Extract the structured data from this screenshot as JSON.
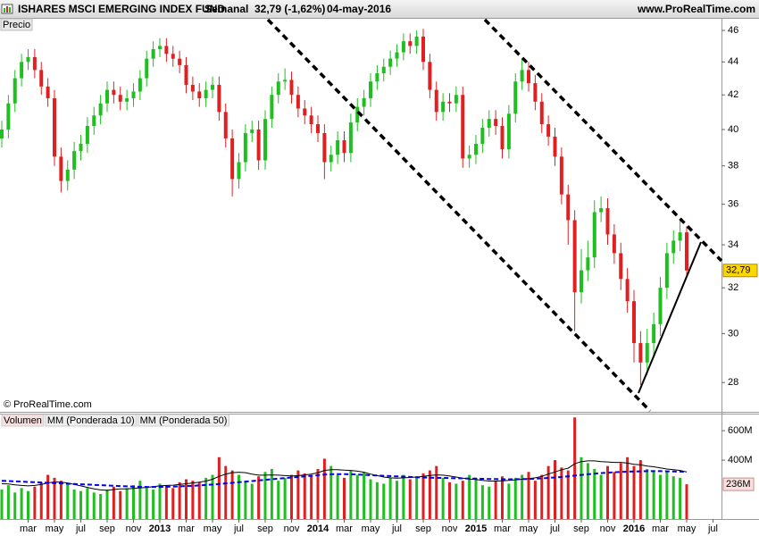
{
  "chart_data": [
    {
      "type": "candlestick",
      "title": "ISHARES MSCI EMERGING INDEX FUND",
      "period": "Semanal",
      "last_change": "32,79 (-1,62%)",
      "date": "04-may-2016",
      "source": "www.ProRealTime.com",
      "panel_label": "Precio",
      "copyright": "© ProRealTime.com",
      "categories": [
        null,
        null,
        null,
        null,
        "mar",
        null,
        null,
        null,
        "may",
        null,
        null,
        null,
        "jul",
        null,
        null,
        null,
        "sep",
        null,
        null,
        null,
        "nov",
        null,
        null,
        null,
        "2013",
        null,
        null,
        null,
        "mar",
        null,
        null,
        null,
        "may",
        null,
        null,
        null,
        "jul",
        null,
        null,
        null,
        "sep",
        null,
        null,
        null,
        "nov",
        null,
        null,
        null,
        "2014",
        null,
        null,
        null,
        "mar",
        null,
        null,
        null,
        "may",
        null,
        null,
        null,
        "jul",
        null,
        null,
        null,
        "sep",
        null,
        null,
        null,
        "nov",
        null,
        null,
        null,
        "2015",
        null,
        null,
        null,
        "mar",
        null,
        null,
        null,
        "may",
        null,
        null,
        null,
        "jul",
        null,
        null,
        null,
        "sep",
        null,
        null,
        null,
        "nov",
        null,
        null,
        null,
        "2016",
        null,
        null,
        null,
        "mar",
        null,
        null,
        null,
        "may",
        null,
        null,
        null,
        "jul",
        null
      ],
      "open": [
        39.5,
        40.0,
        41.5,
        43.0,
        44.0,
        44.3,
        43.5,
        42.5,
        41.8,
        38.5,
        37.2,
        37.8,
        38.8,
        39.2,
        40.2,
        40.8,
        41.5,
        42.3,
        42.0,
        41.6,
        41.8,
        42.2,
        43.0,
        44.2,
        44.8,
        45.0,
        44.5,
        44.2,
        43.8,
        42.6,
        42.2,
        41.8,
        42.3,
        42.6,
        41.0,
        39.5,
        37.3,
        38.2,
        39.8,
        40.0,
        38.3,
        40.6,
        42.0,
        42.8,
        42.9,
        42.0,
        41.2,
        40.8,
        40.3,
        39.8,
        38.2,
        38.6,
        39.4,
        38.7,
        40.4,
        41.3,
        41.8,
        42.8,
        43.3,
        43.7,
        44.2,
        44.6,
        45.3,
        45.0,
        45.6,
        44.0,
        42.3,
        41.0,
        41.6,
        41.5,
        42.0,
        38.4,
        38.6,
        39.2,
        40.1,
        40.6,
        40.2,
        38.9,
        40.9,
        42.8,
        43.5,
        42.7,
        41.6,
        40.3,
        39.6,
        38.5,
        36.5,
        35.2,
        31.8,
        32.8,
        33.4,
        35.6,
        35.8,
        34.5,
        33.6,
        32.4,
        31.4,
        29.6,
        28.8,
        29.6,
        30.4,
        32.0,
        33.6,
        34.2,
        34.6,
        null,
        null,
        null,
        null,
        null
      ],
      "high": [
        40.5,
        42.0,
        43.5,
        44.5,
        44.8,
        44.8,
        44.0,
        43.0,
        42.3,
        39.0,
        38.3,
        39.3,
        39.7,
        40.7,
        41.3,
        42.0,
        42.8,
        42.8,
        42.5,
        42.3,
        42.7,
        43.5,
        44.7,
        45.3,
        45.5,
        45.5,
        45.0,
        44.7,
        44.3,
        43.1,
        42.7,
        42.8,
        43.1,
        43.1,
        41.5,
        40.0,
        38.7,
        40.3,
        40.5,
        40.5,
        41.1,
        42.5,
        43.3,
        43.6,
        43.4,
        42.5,
        41.7,
        41.3,
        40.8,
        40.3,
        39.1,
        39.9,
        39.9,
        40.9,
        41.8,
        42.3,
        43.3,
        43.8,
        44.2,
        44.7,
        45.1,
        45.8,
        45.8,
        46.0,
        46.1,
        44.5,
        42.8,
        42.1,
        42.1,
        42.5,
        42.5,
        39.1,
        39.7,
        40.6,
        41.1,
        41.1,
        40.7,
        41.4,
        43.3,
        44.2,
        44.0,
        43.2,
        42.1,
        40.8,
        40.1,
        39.0,
        37.0,
        35.7,
        33.8,
        34.2,
        36.2,
        36.4,
        36.3,
        35.0,
        34.1,
        32.9,
        31.9,
        30.1,
        30.2,
        30.9,
        32.5,
        34.1,
        34.7,
        35.2,
        34.9,
        null,
        null,
        null,
        null,
        null
      ],
      "low": [
        39.0,
        39.5,
        41.0,
        42.5,
        43.5,
        43.0,
        42.0,
        41.3,
        38.0,
        36.6,
        36.7,
        37.3,
        38.3,
        38.7,
        39.7,
        40.3,
        41.0,
        41.5,
        41.1,
        41.1,
        41.3,
        41.7,
        42.5,
        43.7,
        44.3,
        44.0,
        43.7,
        43.3,
        42.1,
        41.7,
        41.3,
        41.3,
        41.8,
        40.5,
        39.0,
        36.4,
        36.8,
        37.7,
        39.3,
        37.8,
        37.8,
        40.1,
        41.5,
        42.3,
        41.5,
        40.7,
        40.3,
        39.8,
        39.3,
        37.3,
        37.7,
        38.1,
        38.2,
        38.2,
        39.9,
        40.8,
        41.3,
        42.3,
        42.8,
        43.2,
        43.7,
        44.1,
        44.5,
        44.5,
        43.5,
        41.8,
        40.5,
        40.5,
        41.0,
        41.0,
        37.9,
        37.9,
        38.1,
        38.7,
        39.6,
        39.7,
        38.4,
        38.4,
        40.4,
        42.3,
        42.2,
        41.1,
        39.8,
        39.1,
        38.0,
        36.0,
        34.0,
        30.1,
        31.3,
        32.3,
        32.9,
        35.1,
        34.0,
        33.1,
        31.9,
        30.9,
        28.8,
        27.9,
        28.3,
        29.1,
        29.9,
        31.5,
        33.1,
        33.7,
        32.6,
        null,
        null,
        null,
        null,
        null
      ],
      "close": [
        40.0,
        41.5,
        43.0,
        44.0,
        44.3,
        43.5,
        42.5,
        41.8,
        38.5,
        37.2,
        37.8,
        38.8,
        39.2,
        40.2,
        40.8,
        41.5,
        42.3,
        42.0,
        41.6,
        41.8,
        42.2,
        43.0,
        44.2,
        44.8,
        45.0,
        44.5,
        44.2,
        43.8,
        42.6,
        42.2,
        41.8,
        42.3,
        42.6,
        41.0,
        39.5,
        37.3,
        38.2,
        39.8,
        40.0,
        38.3,
        40.6,
        42.0,
        42.8,
        42.9,
        42.0,
        41.2,
        40.8,
        40.3,
        39.8,
        38.2,
        38.6,
        39.4,
        38.7,
        40.4,
        41.3,
        41.8,
        42.8,
        43.3,
        43.7,
        44.2,
        44.6,
        45.3,
        45.0,
        45.6,
        44.0,
        42.3,
        41.0,
        41.6,
        41.5,
        42.0,
        38.4,
        38.6,
        39.2,
        40.1,
        40.6,
        40.2,
        38.9,
        40.9,
        42.8,
        43.5,
        42.7,
        41.6,
        40.3,
        39.6,
        38.5,
        36.5,
        35.2,
        31.8,
        32.8,
        33.4,
        35.6,
        35.8,
        34.5,
        33.6,
        32.4,
        31.4,
        29.6,
        28.8,
        29.6,
        30.4,
        32.0,
        33.6,
        34.2,
        34.6,
        32.79,
        null,
        null,
        null,
        null,
        null
      ],
      "up_color": "#1fbf1f",
      "down_color": "#e02020",
      "log_scale": true,
      "ylim": [
        26.9,
        46.7
      ],
      "yticks": [
        28,
        30,
        32,
        34,
        36,
        38,
        40,
        42,
        44,
        46
      ],
      "current_price": {
        "value": 32.79,
        "label": "32,79"
      }
    },
    {
      "type": "bar",
      "ylim": [
        0,
        710
      ],
      "yticks": [
        {
          "value": 400,
          "label": "400M"
        },
        {
          "value": 600,
          "label": "600M"
        }
      ],
      "current_volume": {
        "value": 236,
        "label": "236M"
      },
      "series": [
        {
          "name": "Volumen",
          "color": "#e05050",
          "values": [
            200,
            230,
            180,
            210,
            190,
            220,
            250,
            300,
            280,
            260,
            240,
            200,
            190,
            210,
            180,
            170,
            200,
            220,
            190,
            210,
            230,
            260,
            220,
            200,
            240,
            230,
            210,
            250,
            270,
            260,
            250,
            280,
            300,
            420,
            360,
            330,
            300,
            260,
            240,
            290,
            320,
            340,
            260,
            280,
            300,
            330,
            310,
            290,
            340,
            410,
            360,
            300,
            280,
            330,
            300,
            320,
            270,
            250,
            240,
            280,
            260,
            300,
            270,
            290,
            310,
            330,
            360,
            280,
            250,
            240,
            260,
            300,
            280,
            230,
            220,
            260,
            290,
            240,
            280,
            300,
            320,
            260,
            300,
            360,
            400,
            350,
            330,
            690,
            420,
            380,
            340,
            300,
            360,
            320,
            380,
            420,
            360,
            400,
            340,
            330,
            300,
            320,
            290,
            280,
            236,
            null,
            null,
            null,
            null,
            null
          ]
        },
        {
          "name": "MM (Ponderada 10)",
          "color": "#000000",
          "values": [
            240,
            238,
            232,
            228,
            225,
            228,
            235,
            245,
            252,
            250,
            245,
            235,
            225,
            215,
            205,
            198,
            195,
            200,
            205,
            205,
            208,
            212,
            215,
            220,
            225,
            228,
            230,
            235,
            240,
            245,
            250,
            258,
            270,
            290,
            305,
            315,
            318,
            315,
            305,
            298,
            298,
            300,
            298,
            295,
            292,
            295,
            300,
            305,
            315,
            330,
            335,
            335,
            332,
            330,
            325,
            318,
            305,
            295,
            285,
            280,
            278,
            280,
            282,
            285,
            290,
            296,
            300,
            298,
            292,
            285,
            278,
            272,
            268,
            262,
            258,
            258,
            260,
            262,
            266,
            270,
            275,
            280,
            290,
            305,
            320,
            335,
            345,
            375,
            390,
            395,
            395,
            390,
            388,
            385,
            385,
            380,
            372,
            368,
            360,
            355,
            348,
            340,
            335,
            330,
            320,
            null,
            null,
            null,
            null,
            null
          ]
        },
        {
          "name": "MM (Ponderada 50)",
          "color": "#0000ee",
          "values": [
            260,
            258,
            256,
            254,
            252,
            250,
            248,
            246,
            244,
            242,
            240,
            238,
            236,
            234,
            232,
            230,
            228,
            226,
            224,
            222,
            220,
            219,
            218,
            218,
            218,
            219,
            220,
            222,
            224,
            226,
            228,
            231,
            234,
            238,
            242,
            246,
            250,
            254,
            258,
            262,
            266,
            270,
            274,
            278,
            282,
            286,
            290,
            294,
            298,
            302,
            304,
            305,
            305,
            304,
            302,
            300,
            298,
            296,
            294,
            292,
            290,
            288,
            286,
            284,
            282,
            281,
            280,
            279,
            278,
            277,
            276,
            275,
            274,
            273,
            272,
            271,
            270,
            270,
            270,
            271,
            272,
            274,
            276,
            279,
            282,
            286,
            290,
            295,
            300,
            304,
            308,
            312,
            315,
            318,
            320,
            322,
            323,
            324,
            325,
            325,
            325,
            324,
            323,
            322,
            320,
            null,
            null,
            null,
            null,
            null
          ]
        }
      ]
    }
  ]
}
